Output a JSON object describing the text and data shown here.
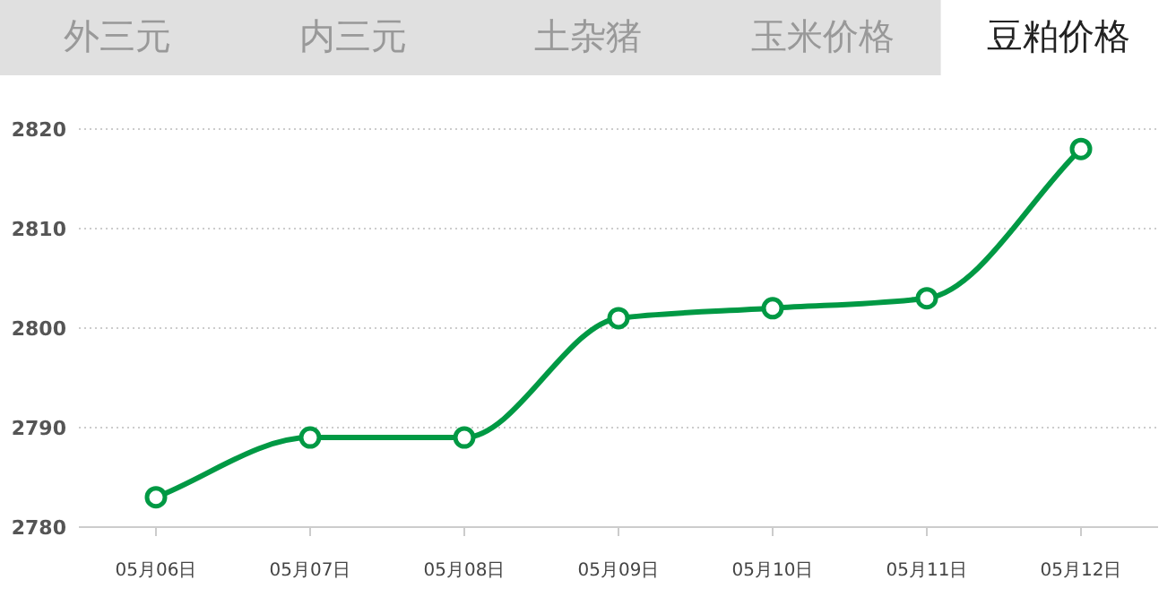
{
  "chart_data": {
    "type": "line",
    "title": "豆粕价格",
    "annotations": [
      "外三元",
      "内三元",
      "土杂猪",
      "玉米价格"
    ],
    "categories": [
      "05月06日",
      "05月07日",
      "05月08日",
      "05月09日",
      "05月10日",
      "05月11日",
      "05月12日"
    ],
    "series": [
      {
        "color": "#009944",
        "values": [
          2783,
          2789,
          2789,
          2801,
          2802,
          2803,
          2818
        ]
      }
    ],
    "ylim": [
      2780,
      2820
    ],
    "yticks": [
      2780,
      2790,
      2800,
      2810,
      2820
    ],
    "grid": "y",
    "marker": "circle",
    "line_style": "solid"
  }
}
